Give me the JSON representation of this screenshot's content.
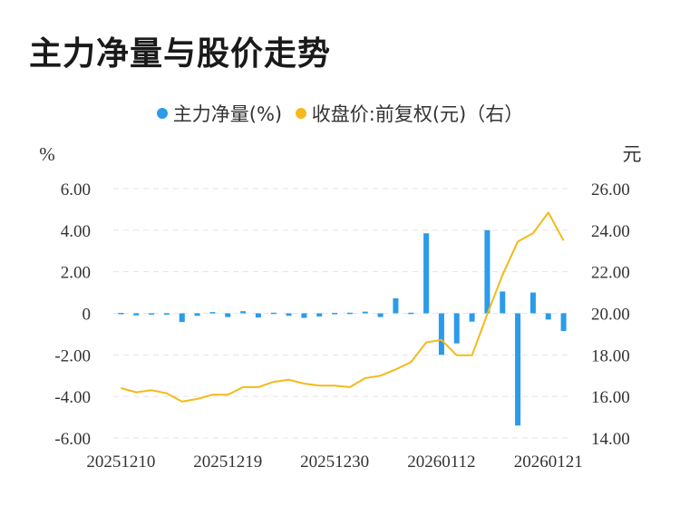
{
  "title": "主力净量与股价走势",
  "legend": {
    "left": {
      "label": "主力净量(%)",
      "color": "#2b9bea"
    },
    "right": {
      "label": "收盘价:前复权(元)（右）",
      "color": "#f5b91a"
    }
  },
  "chart_data": {
    "type": "bar+line",
    "left_axis": {
      "unit": "%",
      "min": -6,
      "max": 6,
      "ticks": [
        "6.00",
        "4.00",
        "2.00",
        "0",
        "-2.00",
        "-4.00",
        "-6.00"
      ]
    },
    "right_axis": {
      "unit": "元",
      "min": 14,
      "max": 26,
      "ticks": [
        "26.00",
        "24.00",
        "22.00",
        "20.00",
        "18.00",
        "16.00",
        "14.00"
      ]
    },
    "x_tick_labels": [
      {
        "index": 0,
        "label": "20251210"
      },
      {
        "index": 7,
        "label": "20251219"
      },
      {
        "index": 14,
        "label": "20251230"
      },
      {
        "index": 21,
        "label": "20260112"
      },
      {
        "index": 28,
        "label": "20260121"
      }
    ],
    "series": [
      {
        "name": "主力净量(%)",
        "type": "bar",
        "color": "#2b9bea",
        "values": [
          0.02,
          -0.1,
          -0.04,
          -0.05,
          -0.42,
          -0.12,
          0.06,
          -0.18,
          0.1,
          -0.2,
          0.03,
          -0.12,
          -0.22,
          -0.15,
          0.02,
          0.03,
          0.08,
          -0.18,
          0.72,
          0.03,
          3.85,
          -2.0,
          -1.45,
          -0.4,
          4.0,
          1.05,
          -5.4,
          1.0,
          -0.3,
          -0.85
        ]
      },
      {
        "name": "收盘价:前复权(元)（右）",
        "type": "line",
        "color": "#f5b91a",
        "values": [
          16.4,
          16.2,
          16.3,
          16.15,
          15.75,
          15.88,
          16.08,
          16.08,
          16.45,
          16.45,
          16.7,
          16.8,
          16.62,
          16.52,
          16.52,
          16.45,
          16.88,
          17.0,
          17.3,
          17.65,
          18.6,
          18.72,
          17.98,
          17.98,
          19.95,
          21.85,
          23.45,
          23.85,
          24.85,
          23.5
        ]
      }
    ]
  }
}
